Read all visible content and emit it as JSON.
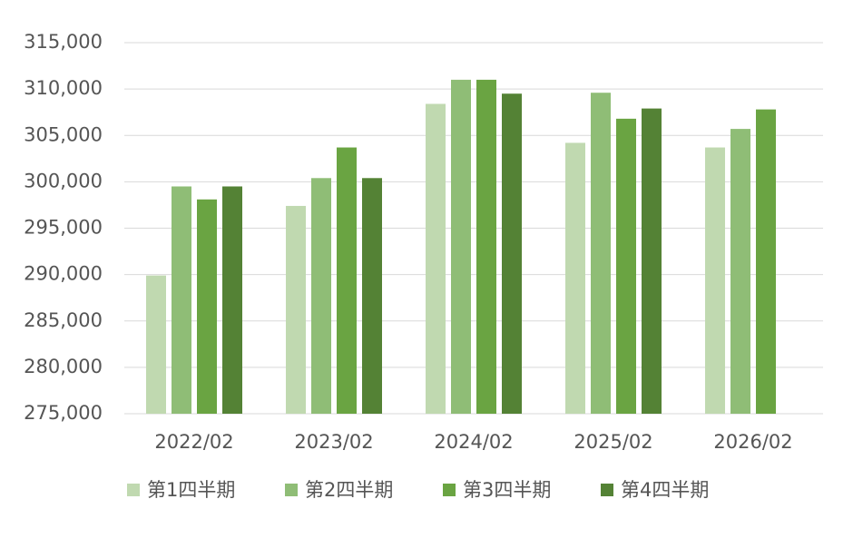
{
  "chart_data": {
    "type": "bar",
    "categories": [
      "2022/02",
      "2023/02",
      "2024/02",
      "2025/02",
      "2026/02"
    ],
    "series": [
      {
        "name": "第1四半期",
        "color": "#c0d9b0",
        "values": [
          289900,
          297400,
          308400,
          304200,
          303700
        ]
      },
      {
        "name": "第2四半期",
        "color": "#8fbd76",
        "values": [
          299500,
          300400,
          311000,
          309600,
          305700
        ]
      },
      {
        "name": "第3四半期",
        "color": "#6aa442",
        "values": [
          298100,
          303700,
          311000,
          306800,
          307800
        ]
      },
      {
        "name": "第4四半期",
        "color": "#548235",
        "values": [
          299500,
          300400,
          309500,
          307900,
          null
        ]
      }
    ],
    "ylim": [
      275000,
      315000
    ],
    "yticks": [
      {
        "value": 275000,
        "label": "275,000"
      },
      {
        "value": 280000,
        "label": "280,000"
      },
      {
        "value": 285000,
        "label": "285,000"
      },
      {
        "value": 290000,
        "label": "290,000"
      },
      {
        "value": 295000,
        "label": "295,000"
      },
      {
        "value": 300000,
        "label": "300,000"
      },
      {
        "value": 305000,
        "label": "305,000"
      },
      {
        "value": 310000,
        "label": "310,000"
      },
      {
        "value": 315000,
        "label": "315,000"
      }
    ],
    "grid": true,
    "legend": "bottom"
  }
}
